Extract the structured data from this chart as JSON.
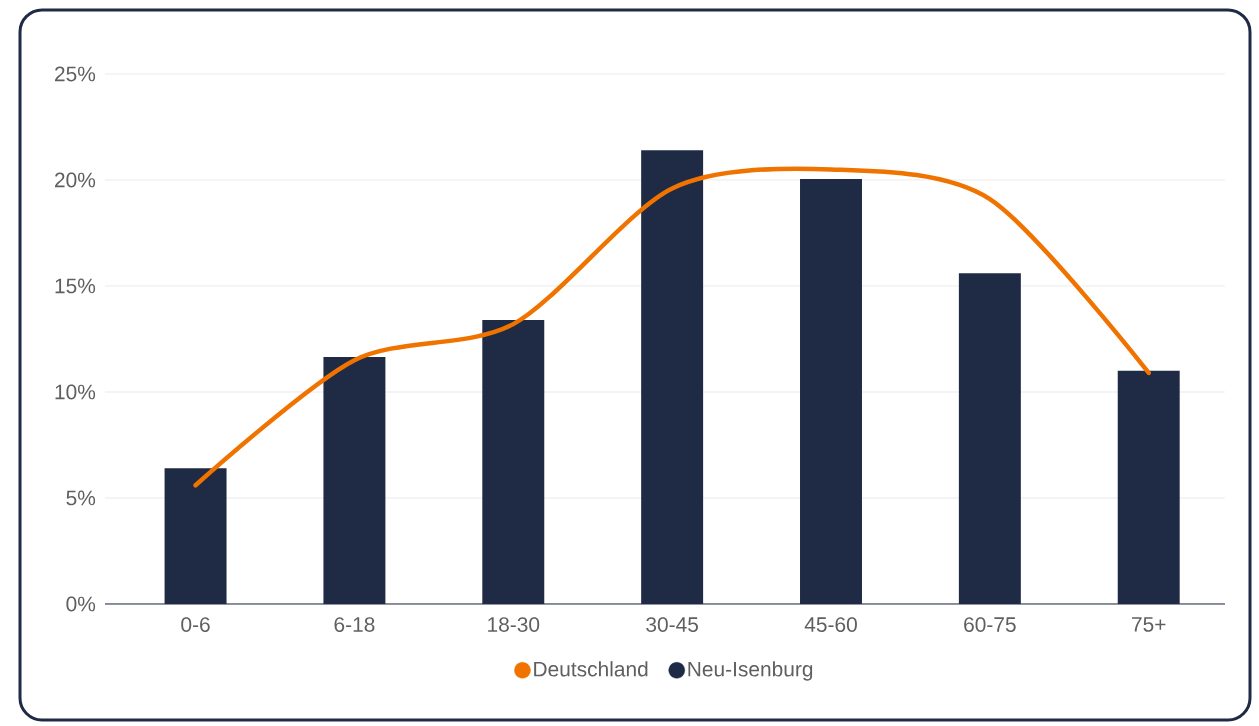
{
  "chart_data": {
    "type": "bar",
    "categories": [
      "0-6",
      "6-18",
      "18-30",
      "30-45",
      "45-60",
      "60-75",
      "75+"
    ],
    "series": [
      {
        "name": "Deutschland",
        "type": "line",
        "color": "#f07300",
        "values": [
          5.6,
          11.5,
          13.2,
          19.6,
          20.5,
          19.1,
          10.9
        ]
      },
      {
        "name": "Neu-Isenburg",
        "color": "#1f2a44",
        "values": [
          6.4,
          11.65,
          13.4,
          21.4,
          20.05,
          15.6,
          11.0
        ]
      }
    ],
    "ylim": [
      0,
      25
    ],
    "yticks": [
      {
        "value": 0,
        "label": "0%"
      },
      {
        "value": 5,
        "label": "5%"
      },
      {
        "value": 10,
        "label": "10%"
      },
      {
        "value": 15,
        "label": "15%"
      },
      {
        "value": 20,
        "label": "20%"
      },
      {
        "value": 25,
        "label": "25%"
      }
    ],
    "grid": "y",
    "legend": "bottom"
  }
}
